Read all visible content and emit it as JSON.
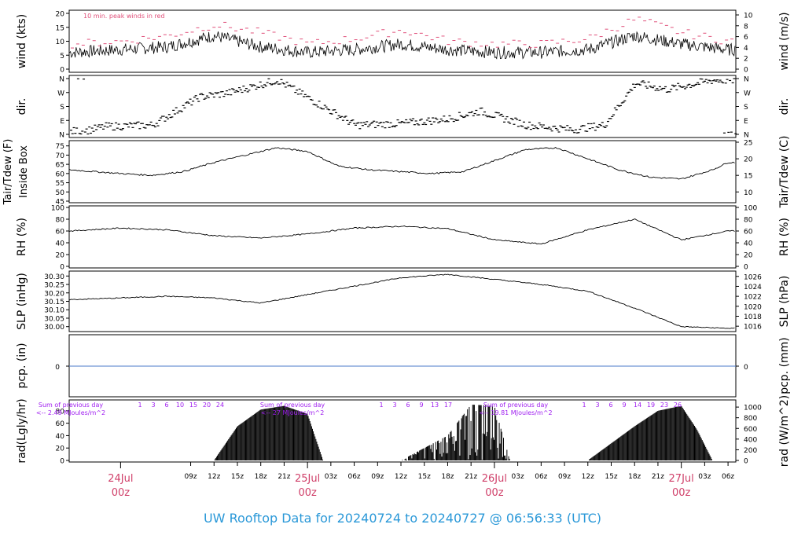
{
  "title": "UW Rooftop Data for 20240724  to  20240727 @ 06:56:33  (UTC)",
  "colors": {
    "wind_peak": "#e0507a",
    "precip_line": "#4a78c8",
    "solar_text": "#a020f0",
    "date_label": "#d0406a",
    "title": "#2a98d8"
  },
  "time_axis": {
    "hour_ticks": [
      "09z",
      "12z",
      "15z",
      "18z",
      "21z",
      "03z",
      "06z",
      "09z",
      "12z",
      "15z",
      "18z",
      "21z",
      "03z",
      "06z",
      "09z",
      "12z",
      "15z",
      "18z",
      "21z",
      "03z",
      "06z"
    ],
    "day_labels": [
      {
        "top": "24Jul",
        "bottom": "00z"
      },
      {
        "top": "25Jul",
        "bottom": "00z"
      },
      {
        "top": "26Jul",
        "bottom": "00z"
      },
      {
        "top": "27Jul",
        "bottom": "00z"
      }
    ]
  },
  "panels": {
    "wind": {
      "left_label": "wind (kts)",
      "right_label": "wind (m/s)",
      "left_ticks": [
        "0",
        "5",
        "10",
        "15",
        "20"
      ],
      "right_ticks": [
        "0",
        "2",
        "4",
        "6",
        "8",
        "10"
      ],
      "note": "10 min. peak winds in red"
    },
    "dir": {
      "left_label": "dir.",
      "right_label": "dir.",
      "ticks": [
        "N",
        "E",
        "S",
        "W",
        "N"
      ]
    },
    "temp": {
      "left_label_1": "Tair/Tdew (F)",
      "left_label_2": "Inside Box",
      "right_label": "Tair/Tdew (C)",
      "left_ticks": [
        "45",
        "50",
        "55",
        "60",
        "65",
        "70",
        "75"
      ],
      "right_ticks": [
        "10",
        "15",
        "20",
        "25"
      ]
    },
    "rh": {
      "left_label": "RH (%)",
      "right_label": "RH (%)",
      "ticks": [
        "0",
        "20",
        "40",
        "60",
        "80",
        "100"
      ]
    },
    "slp": {
      "left_label": "SLP (inHg)",
      "right_label": "SLP (hPa)",
      "left_ticks": [
        "30.00",
        "30.05",
        "30.10",
        "30.15",
        "30.20",
        "30.25",
        "30.30"
      ],
      "right_ticks": [
        "1016",
        "1018",
        "1020",
        "1022",
        "1024",
        "1026"
      ]
    },
    "pcp": {
      "left_label": "pcp. (in)",
      "right_label": "pcp. (mm)",
      "left_tick": "0",
      "right_tick": "0"
    },
    "rad": {
      "left_label": "rad(Lgly/hr)",
      "right_label": "rad (W/m^2)",
      "left_ticks": [
        "0",
        "20",
        "40",
        "60",
        "80"
      ],
      "right_ticks": [
        "0",
        "200",
        "400",
        "600",
        "800",
        "1000"
      ],
      "sums": [
        {
          "line1": "Sum of previous day",
          "line2": "<-- 2.49 MJoules/m^2"
        },
        {
          "line1": "Sum of previous day",
          "line2": "<-- 27 MJoules/m^2"
        },
        {
          "line1": "Sum of previous day",
          "line2": "<-- 19.81 MJoules/m^2"
        }
      ],
      "hour_marks": [
        [
          "1",
          "3",
          "6",
          "10",
          "15",
          "20",
          "24"
        ],
        [
          "1",
          "3",
          "6",
          "9",
          "13",
          "17"
        ],
        [
          "1",
          "3",
          "6",
          "9",
          "14",
          "19",
          "23",
          "26"
        ]
      ]
    }
  },
  "chart_data": [
    {
      "type": "line",
      "ylabel": "wind (kts)",
      "ylim": [
        0,
        20
      ],
      "series": [
        {
          "name": "10 min. peak winds",
          "color": "#e0507a",
          "x": [
            -6.5,
            0,
            6,
            12,
            18,
            24,
            30,
            36,
            42,
            48,
            54,
            60,
            66,
            72,
            78
          ],
          "values": [
            9,
            10,
            12,
            16,
            13,
            9,
            11,
            14,
            10,
            9,
            9,
            11,
            18,
            13,
            10
          ]
        },
        {
          "values_x": [
            -6.5,
            0,
            6,
            12,
            18,
            24,
            30,
            36,
            42,
            48,
            54,
            60,
            66,
            72,
            78
          ],
          "values": [
            6,
            7,
            8,
            12,
            8,
            6,
            7,
            9,
            7,
            6,
            6,
            7,
            12,
            9,
            7
          ]
        }
      ]
    },
    {
      "type": "scatter",
      "ylabel": "dir.",
      "ticks": [
        "N",
        "E",
        "S",
        "W",
        "N"
      ],
      "x": [
        -5,
        -2,
        4,
        10,
        14,
        20,
        30,
        36,
        42,
        46,
        52,
        58,
        62,
        66,
        70,
        76
      ],
      "values": [
        20,
        50,
        60,
        240,
        270,
        350,
        60,
        70,
        100,
        150,
        60,
        30,
        60,
        330,
        290,
        350
      ]
    },
    {
      "type": "line",
      "ylabel": "Tair/Tdew (F)",
      "ylim": [
        45,
        77
      ],
      "x": [
        -6.5,
        0,
        4,
        8,
        12,
        16,
        20,
        24,
        28,
        32,
        36,
        40,
        44,
        48,
        52,
        56,
        60,
        64,
        68,
        72,
        76,
        78
      ],
      "values": [
        62,
        60,
        59,
        61,
        66,
        70,
        74,
        72,
        64,
        62,
        61,
        60,
        61,
        67,
        73,
        74,
        68,
        62,
        58,
        57,
        62,
        66
      ]
    },
    {
      "type": "line",
      "ylabel": "RH (%)",
      "ylim": [
        0,
        100
      ],
      "x": [
        -6.5,
        0,
        6,
        12,
        18,
        24,
        30,
        36,
        42,
        48,
        54,
        60,
        66,
        72,
        78
      ],
      "values": [
        60,
        65,
        62,
        52,
        48,
        55,
        65,
        68,
        64,
        45,
        38,
        62,
        80,
        45,
        60
      ]
    },
    {
      "type": "line",
      "ylabel": "SLP (inHg)",
      "ylim": [
        29.98,
        30.32
      ],
      "x": [
        -6.5,
        0,
        6,
        12,
        18,
        24,
        30,
        36,
        42,
        48,
        54,
        60,
        66,
        72,
        78
      ],
      "values": [
        30.16,
        30.17,
        30.18,
        30.17,
        30.14,
        30.19,
        30.24,
        30.29,
        30.31,
        30.28,
        30.25,
        30.21,
        30.11,
        30.0,
        29.99
      ]
    },
    {
      "type": "line",
      "ylabel": "pcp. (in)",
      "values": [
        0
      ]
    },
    {
      "type": "area",
      "ylabel": "rad(Lgly/hr)",
      "ylim": [
        0,
        95
      ],
      "x": [
        12,
        15,
        18,
        21,
        24,
        26,
        36,
        42,
        45,
        48,
        50,
        60,
        66,
        69,
        72,
        74,
        76
      ],
      "values": [
        0,
        55,
        82,
        88,
        75,
        0,
        0,
        40,
        90,
        88,
        0,
        0,
        55,
        80,
        88,
        50,
        0
      ]
    }
  ]
}
